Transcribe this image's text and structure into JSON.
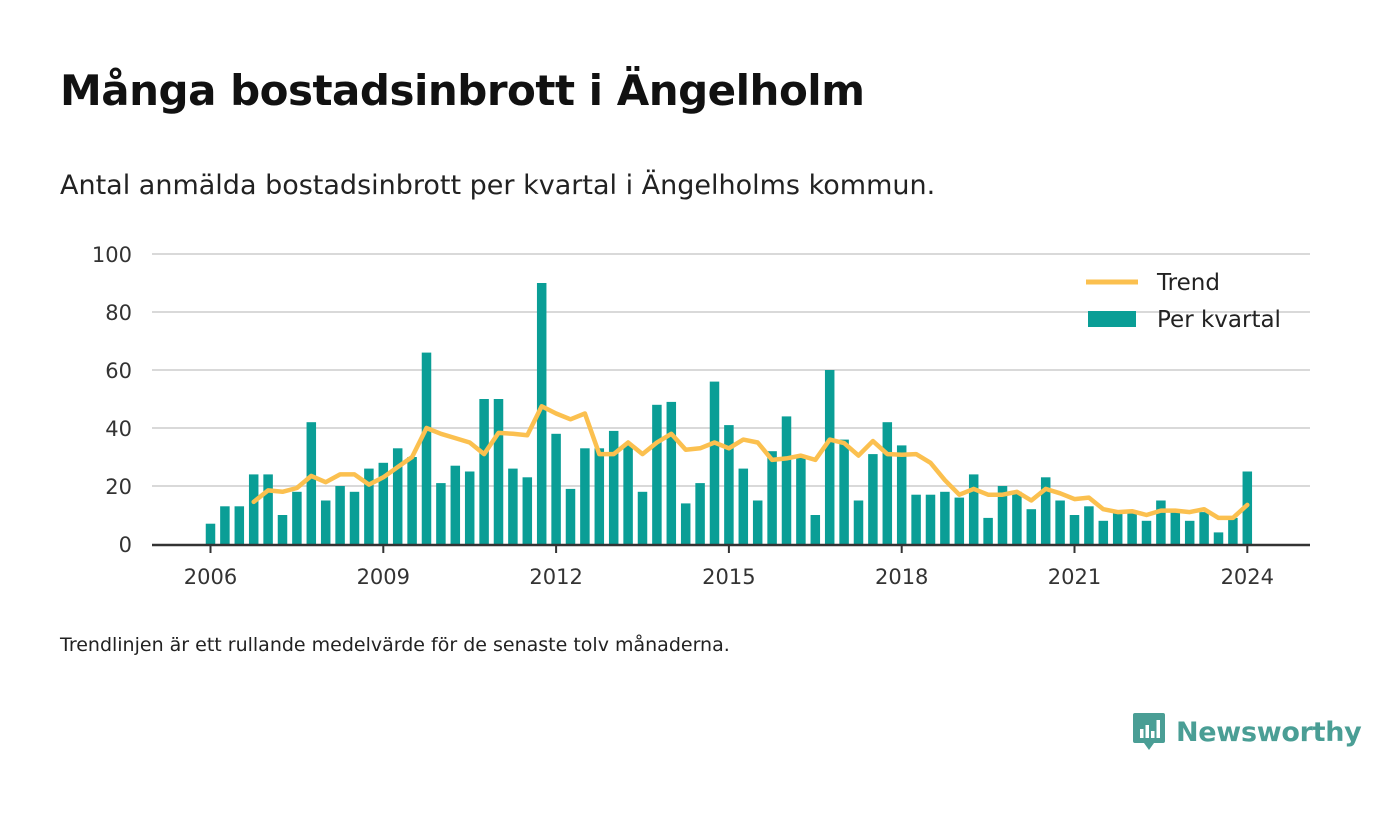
{
  "title": "Många bostadsinbrott i Ängelholm",
  "subtitle": "Antal anmälda bostadsinbrott per kvartal i Ängelholms kommun.",
  "note": "Trendlinjen är ett rullande medelvärde för de senaste tolv månaderna.",
  "brand": "Newsworthy",
  "colors": {
    "bars": "#0a9e96",
    "trend": "#fbc04f",
    "grid": "#d9d9d9",
    "axis": "#333333",
    "brand": "#4a9e95"
  },
  "chart_data": {
    "type": "bar",
    "x_tick_labels": [
      "2006",
      "2009",
      "2012",
      "2015",
      "2018",
      "2021",
      "2024"
    ],
    "y_ticks": [
      0,
      20,
      40,
      60,
      80,
      100
    ],
    "ylim": [
      0,
      100
    ],
    "grid": true,
    "legend_position": "top-right",
    "series": [
      {
        "name": "Per kvartal",
        "type": "bar",
        "x": [
          "2006Q1",
          "2006Q2",
          "2006Q3",
          "2006Q4",
          "2007Q1",
          "2007Q2",
          "2007Q3",
          "2007Q4",
          "2008Q1",
          "2008Q2",
          "2008Q3",
          "2008Q4",
          "2009Q1",
          "2009Q2",
          "2009Q3",
          "2009Q4",
          "2010Q1",
          "2010Q2",
          "2010Q3",
          "2010Q4",
          "2011Q1",
          "2011Q2",
          "2011Q3",
          "2011Q4",
          "2012Q1",
          "2012Q2",
          "2012Q3",
          "2012Q4",
          "2013Q1",
          "2013Q2",
          "2013Q3",
          "2013Q4",
          "2014Q1",
          "2014Q2",
          "2014Q3",
          "2014Q4",
          "2015Q1",
          "2015Q2",
          "2015Q3",
          "2015Q4",
          "2016Q1",
          "2016Q2",
          "2016Q3",
          "2016Q4",
          "2017Q1",
          "2017Q2",
          "2017Q3",
          "2017Q4",
          "2018Q1",
          "2018Q2",
          "2018Q3",
          "2018Q4",
          "2019Q1",
          "2019Q2",
          "2019Q3",
          "2019Q4",
          "2020Q1",
          "2020Q2",
          "2020Q3",
          "2020Q4",
          "2021Q1",
          "2021Q2",
          "2021Q3",
          "2021Q4",
          "2022Q1",
          "2022Q2",
          "2022Q3",
          "2022Q4",
          "2023Q1",
          "2023Q2",
          "2023Q3",
          "2023Q4",
          "2024Q1"
        ],
        "values": [
          7,
          13,
          13,
          24,
          24,
          10,
          18,
          42,
          15,
          20,
          18,
          26,
          28,
          33,
          30,
          66,
          21,
          27,
          25,
          50,
          50,
          26,
          23,
          90,
          38,
          19,
          33,
          33,
          39,
          34,
          18,
          48,
          49,
          14,
          21,
          56,
          41,
          26,
          15,
          32,
          44,
          30,
          10,
          60,
          36,
          15,
          31,
          42,
          34,
          17,
          17,
          18,
          16,
          24,
          9,
          20,
          18,
          12,
          23,
          15,
          10,
          13,
          8,
          11,
          11,
          8,
          15,
          11,
          8,
          11,
          4,
          9,
          25
        ]
      },
      {
        "name": "Trend",
        "type": "line",
        "x": [
          "2006Q4",
          "2007Q1",
          "2007Q2",
          "2007Q3",
          "2007Q4",
          "2008Q1",
          "2008Q2",
          "2008Q3",
          "2008Q4",
          "2009Q1",
          "2009Q2",
          "2009Q3",
          "2009Q4",
          "2010Q1",
          "2010Q2",
          "2010Q3",
          "2010Q4",
          "2011Q1",
          "2011Q2",
          "2011Q3",
          "2011Q4",
          "2012Q1",
          "2012Q2",
          "2012Q3",
          "2012Q4",
          "2013Q1",
          "2013Q2",
          "2013Q3",
          "2013Q4",
          "2014Q1",
          "2014Q2",
          "2014Q3",
          "2014Q4",
          "2015Q1",
          "2015Q2",
          "2015Q3",
          "2015Q4",
          "2016Q1",
          "2016Q2",
          "2016Q3",
          "2016Q4",
          "2017Q1",
          "2017Q2",
          "2017Q3",
          "2017Q4",
          "2018Q1",
          "2018Q2",
          "2018Q3",
          "2018Q4",
          "2019Q1",
          "2019Q2",
          "2019Q3",
          "2019Q4",
          "2020Q1",
          "2020Q2",
          "2020Q3",
          "2020Q4",
          "2021Q1",
          "2021Q2",
          "2021Q3",
          "2021Q4",
          "2022Q1",
          "2022Q2",
          "2022Q3",
          "2022Q4",
          "2023Q1",
          "2023Q2",
          "2023Q3",
          "2023Q4",
          "2024Q1"
        ],
        "values": [
          14.5,
          18.5,
          18,
          19.3,
          23.5,
          21.3,
          24,
          24,
          20.5,
          23,
          26.5,
          30,
          40,
          38,
          36.5,
          35,
          31,
          38.3,
          38,
          37.5,
          47.5,
          45,
          43,
          45,
          31,
          31,
          35,
          31,
          35,
          38,
          32.5,
          33,
          35,
          33,
          36,
          35,
          29,
          29.5,
          30.5,
          29,
          36,
          34.8,
          30.5,
          35.5,
          31,
          30.8,
          31,
          28,
          22,
          17,
          19,
          17,
          17,
          18,
          15,
          19,
          17.5,
          15.5,
          16,
          12,
          11,
          11.3,
          10,
          11.5,
          11.5,
          11,
          12,
          9,
          9,
          13.5
        ]
      }
    ]
  }
}
